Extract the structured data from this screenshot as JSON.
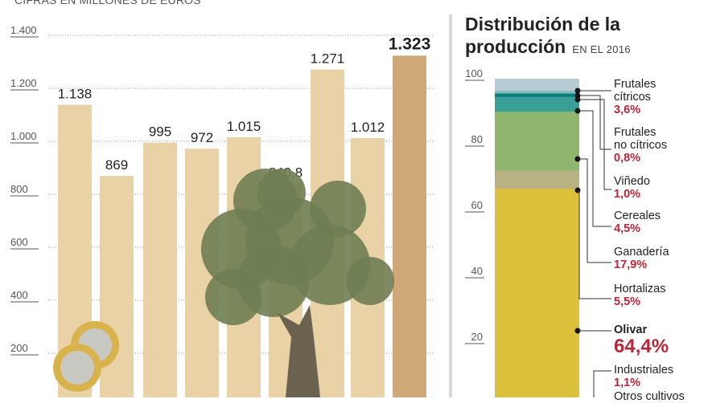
{
  "left": {
    "subtitle": "CIFRAS EN MILLONES DE EUROS"
  },
  "right": {
    "title_line1": "Distribución de la",
    "title_line2": "producción",
    "subtitle": "EN EL 2016"
  },
  "chart_data": [
    {
      "type": "bar",
      "title": "",
      "ylabel": "Cifras en millones de euros",
      "ylim": [
        0,
        1400
      ],
      "yticks": [
        "200",
        "400",
        "600",
        "800",
        "1.000",
        "1.200",
        "1.400"
      ],
      "ytick_values": [
        200,
        400,
        600,
        800,
        1000,
        1200,
        1400
      ],
      "grid": true,
      "values": [
        1138,
        869,
        995,
        972,
        1015,
        840.8,
        1271,
        1012,
        1323
      ],
      "labels": [
        "1.138",
        "869",
        "995",
        "972",
        "1.015",
        "840,8",
        "1.271",
        "1.012",
        "1.323"
      ],
      "colors": {
        "bar": "#e8d2a6",
        "highlight": "#cfa877"
      }
    },
    {
      "type": "bar",
      "stacked": true,
      "title": "Distribución de la producción en el 2016",
      "ylim": [
        0,
        100
      ],
      "yticks": [
        "20",
        "40",
        "60",
        "80",
        "100"
      ],
      "ytick_values": [
        20,
        40,
        60,
        80,
        100
      ],
      "segments": [
        {
          "name": "Otros cultivos",
          "value": 1.2,
          "pct": "",
          "color": "#dcc13c"
        },
        {
          "name": "Industriales",
          "value": 1.1,
          "pct": "1,1%",
          "color": "#dcc13c"
        },
        {
          "name": "Olivar",
          "value": 64.4,
          "pct": "64,4%",
          "color": "#dcc13c"
        },
        {
          "name": "Hortalizas",
          "value": 5.5,
          "pct": "5,5%",
          "color": "#b9b383"
        },
        {
          "name": "Ganadería",
          "value": 17.9,
          "pct": "17,9%",
          "color": "#8fb56e"
        },
        {
          "name": "Cereales",
          "value": 4.5,
          "pct": "4,5%",
          "color": "#3a9f97"
        },
        {
          "name": "Viñedo",
          "value": 1.0,
          "pct": "1,0%",
          "color": "#0b7d7a"
        },
        {
          "name": "Frutales no cítricos",
          "value": 0.8,
          "pct": "0,8%",
          "color": "#7fbcbc"
        },
        {
          "name": "Frutales cítricos",
          "value": 3.6,
          "pct": "3,6%",
          "color": "#b8ccd6"
        }
      ]
    }
  ],
  "legend": [
    {
      "l1": "Frutales",
      "l2": "cítricos",
      "pct": "3,6%"
    },
    {
      "l1": "Frutales",
      "l2": "no  cítricos",
      "pct": "0,8%"
    },
    {
      "l1": "Viñedo",
      "pct": "1,0%"
    },
    {
      "l1": "Cereales",
      "pct": "4,5%"
    },
    {
      "l1": "Ganadería",
      "pct": "17,9%"
    },
    {
      "l1": "Hortalizas",
      "pct": "5,5%"
    },
    {
      "l1": "Olivar",
      "pct": "64,4%"
    },
    {
      "l1": "Industriales",
      "pct": "1,1%"
    },
    {
      "l1": "Otros  cultivos"
    }
  ]
}
